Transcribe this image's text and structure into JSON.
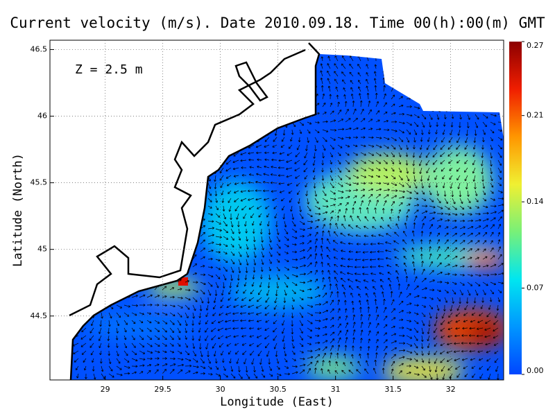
{
  "chart_data": {
    "type": "map",
    "title": "Current velocity (m/s). Date 2010.09.18. Time 00(h):00(m) GMT",
    "annotation": "Z = 2.5 m",
    "x_label": "Longitude (East)",
    "y_label": "Latitude (North)",
    "xlim": [
      28.52,
      32.46
    ],
    "ylim": [
      44.02,
      46.57
    ],
    "xticks": [
      29,
      29.5,
      30,
      30.5,
      31,
      31.5,
      32
    ],
    "yticks": [
      44.5,
      45,
      45.5,
      46,
      46.5
    ],
    "grid": true,
    "colorbar": {
      "lim": [
        0,
        0.27
      ],
      "ticks": [
        {
          "value": 0,
          "label": "0.00"
        },
        0.07,
        0.14,
        0.21,
        0.27
      ],
      "colors": [
        "#0046ff",
        "#0096ff",
        "#00e6f0",
        "#78f078",
        "#f0f032",
        "#ff9600",
        "#f01e00",
        "#8c0000"
      ]
    }
  }
}
